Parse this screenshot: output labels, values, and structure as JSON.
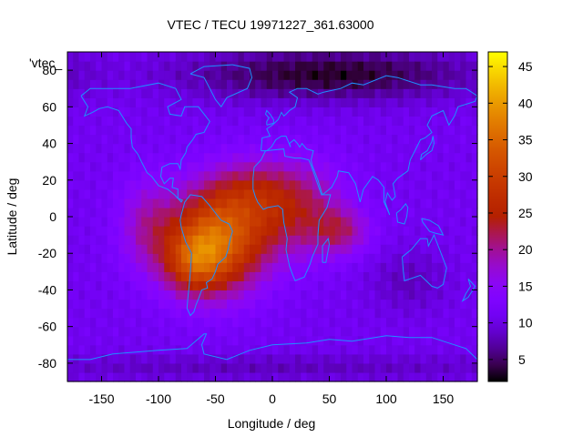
{
  "chart_data": {
    "type": "heatmap",
    "title": "VTEC / TECU 19971227_361.63000",
    "xlabel": "Longitude / deg",
    "ylabel": "Latitude / deg",
    "legend_label": "'vtec_",
    "xlim": [
      -180,
      180
    ],
    "ylim": [
      -90,
      90
    ],
    "xticks": [
      -150,
      -100,
      -50,
      0,
      50,
      100,
      150
    ],
    "yticks": [
      -80,
      -60,
      -40,
      -20,
      0,
      20,
      40,
      60,
      80
    ],
    "colorbar": {
      "min": 2,
      "max": 47,
      "ticks": [
        5,
        10,
        15,
        20,
        25,
        30,
        35,
        40,
        45
      ]
    },
    "grid_resolution_deg": 5,
    "field_model": {
      "background": 11,
      "components": [
        {
          "lon": -48,
          "lat": -12,
          "sigma_lon": 30,
          "sigma_lat": 20,
          "amp": 23
        },
        {
          "lon": -70,
          "lat": -25,
          "sigma_lon": 18,
          "sigma_lat": 12,
          "amp": 11
        },
        {
          "lon": -110,
          "lat": -5,
          "sigma_lon": 18,
          "sigma_lat": 18,
          "amp": 7
        },
        {
          "lon": 20,
          "lat": 5,
          "sigma_lon": 30,
          "sigma_lat": 18,
          "amp": 11
        },
        {
          "lon": 60,
          "lat": -8,
          "sigma_lon": 18,
          "sigma_lat": 9,
          "amp": 8
        },
        {
          "lon": -20,
          "lat": 15,
          "sigma_lon": 25,
          "sigma_lat": 12,
          "amp": 6
        },
        {
          "lon": 50,
          "lat": 78,
          "sigma_lon": 90,
          "sigma_lat": 10,
          "amp": -8
        },
        {
          "lon": 120,
          "lat": -35,
          "sigma_lon": 25,
          "sigma_lat": 12,
          "amp": -3
        },
        {
          "lon": 0,
          "lat": -82,
          "sigma_lon": 200,
          "sigma_lat": 5,
          "amp": -3
        }
      ]
    },
    "coastline_color": "#1e90ff",
    "colormap": "gnuplot-pm3d-black-purple-red-yellow"
  }
}
